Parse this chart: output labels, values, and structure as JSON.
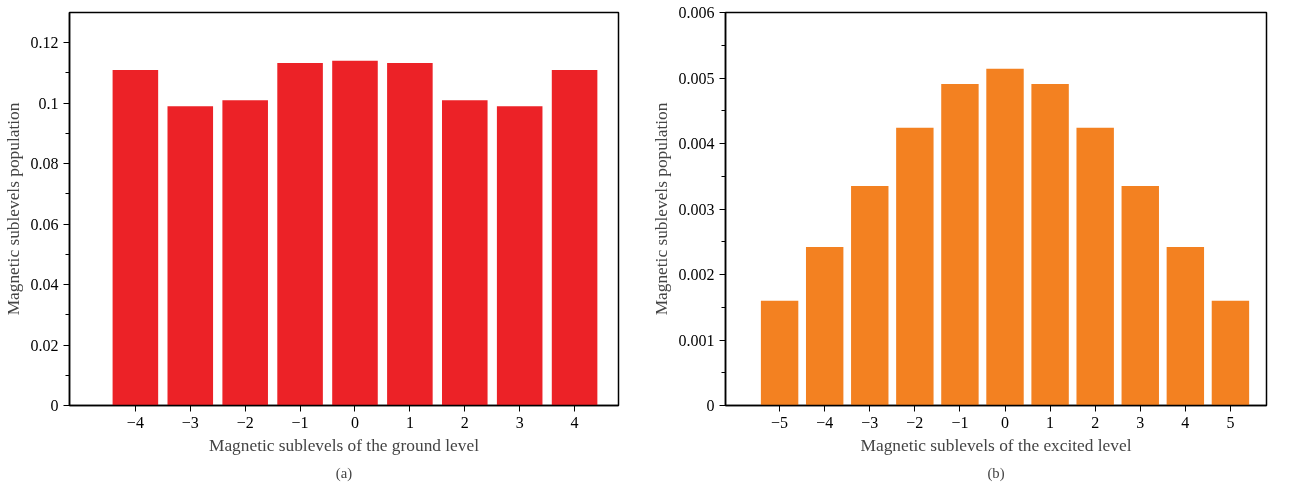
{
  "chart_data": [
    {
      "type": "bar",
      "xlabel": "Magnetic sublevels of the ground level",
      "ylabel": "Magnetic sublevels population",
      "annotations": [
        "(a)"
      ],
      "categories": [
        "−4",
        "−3",
        "−2",
        "−1",
        "0",
        "1",
        "2",
        "3",
        "4"
      ],
      "values": [
        0.111,
        0.099,
        0.101,
        0.1133,
        0.114,
        0.1133,
        0.101,
        0.099,
        0.111
      ],
      "color": "#ec2227",
      "ylim": [
        0,
        0.13
      ],
      "yticks": [
        0,
        0.02,
        0.04,
        0.06,
        0.08,
        {
          "value": 0.1,
          "label": "0.1"
        },
        0.12
      ],
      "grid": false
    },
    {
      "type": "bar",
      "xlabel": "Magnetic sublevels of the excited level",
      "ylabel": "Magnetic sublevels population",
      "annotations": [
        "(b)"
      ],
      "categories": [
        "−5",
        "−4",
        "−3",
        "−2",
        "−1",
        "0",
        "1",
        "2",
        "3",
        "4",
        "5"
      ],
      "values": [
        0.0016,
        0.00242,
        0.00335,
        0.00424,
        0.00491,
        0.00514,
        0.00491,
        0.00424,
        0.00335,
        0.00242,
        0.0016
      ],
      "color": "#f38121",
      "ylim": [
        0,
        0.006
      ],
      "yticks": [
        0,
        0.001,
        0.002,
        0.003,
        0.004,
        0.005,
        0.006
      ],
      "grid": false
    }
  ]
}
